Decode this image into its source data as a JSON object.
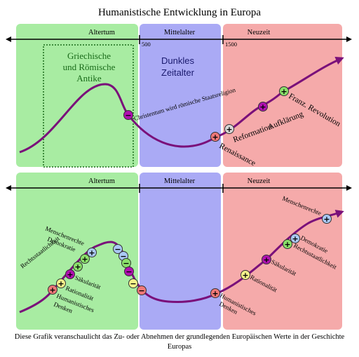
{
  "title": "Humanistische Entwicklung in Europa",
  "top_panel": {
    "eras": [
      "Altertum",
      "Mittelalter",
      "Neuzeit"
    ],
    "year_marks": [
      "500",
      "1500"
    ],
    "highlight_lines": [
      "Griechische",
      "und Römische",
      "Antike"
    ],
    "dark_age_lines": [
      "Dunkles",
      "Zeitalter"
    ],
    "events": {
      "christentum": "Christentum wird römische Staatsreligion",
      "reformation": "Reformation",
      "renaissance": "Renaissance",
      "aufklaerung": "Aufklärung",
      "revolution": "Franz. Revolution"
    }
  },
  "bottom_panel": {
    "eras": [
      "Altertum",
      "Mittelalter",
      "Neuzeit"
    ],
    "values_left": {
      "menschenrechte": "Menschenrechte",
      "demokratie": "Demokratie",
      "rechtsstaatlichkeit": "Rechtsstaatlichkeit",
      "saekularitaet": "Säkularität",
      "rationalitaet": "Rationalität",
      "humanistisches_1": "Humanistisches",
      "humanistisches_2": "Denken"
    },
    "values_right": {
      "menschenrechte": "Menschenrechte",
      "demokratie": "Demokratie",
      "rechtsstaatlichkeit": "Rechtsstaatlichkeit",
      "saekularitaet": "Säkularität",
      "rationalitaet": "Rationalität",
      "humanistisches_1": "Humanistisches",
      "humanistisches_2": "Denken"
    }
  },
  "caption": "Diese Grafik veranschaulicht das Zu- oder Abnehmen der grundlegenden Europäischen Werte in der Geschichte Europas",
  "colors": {
    "antiquity": "#a8eca2",
    "middle_ages": "#aaaaf5",
    "modern": "#f5aaaa",
    "curve": "#7a107a",
    "purple_dot": "#b010b0",
    "green_dot": "#8ae06a",
    "blue_dot": "#aac8f5",
    "yellow_dot": "#f5f28a",
    "salmon_dot": "#f07878",
    "light_dot": "#d8d8d8"
  },
  "symbols": {
    "plus": "+",
    "minus": "−"
  }
}
